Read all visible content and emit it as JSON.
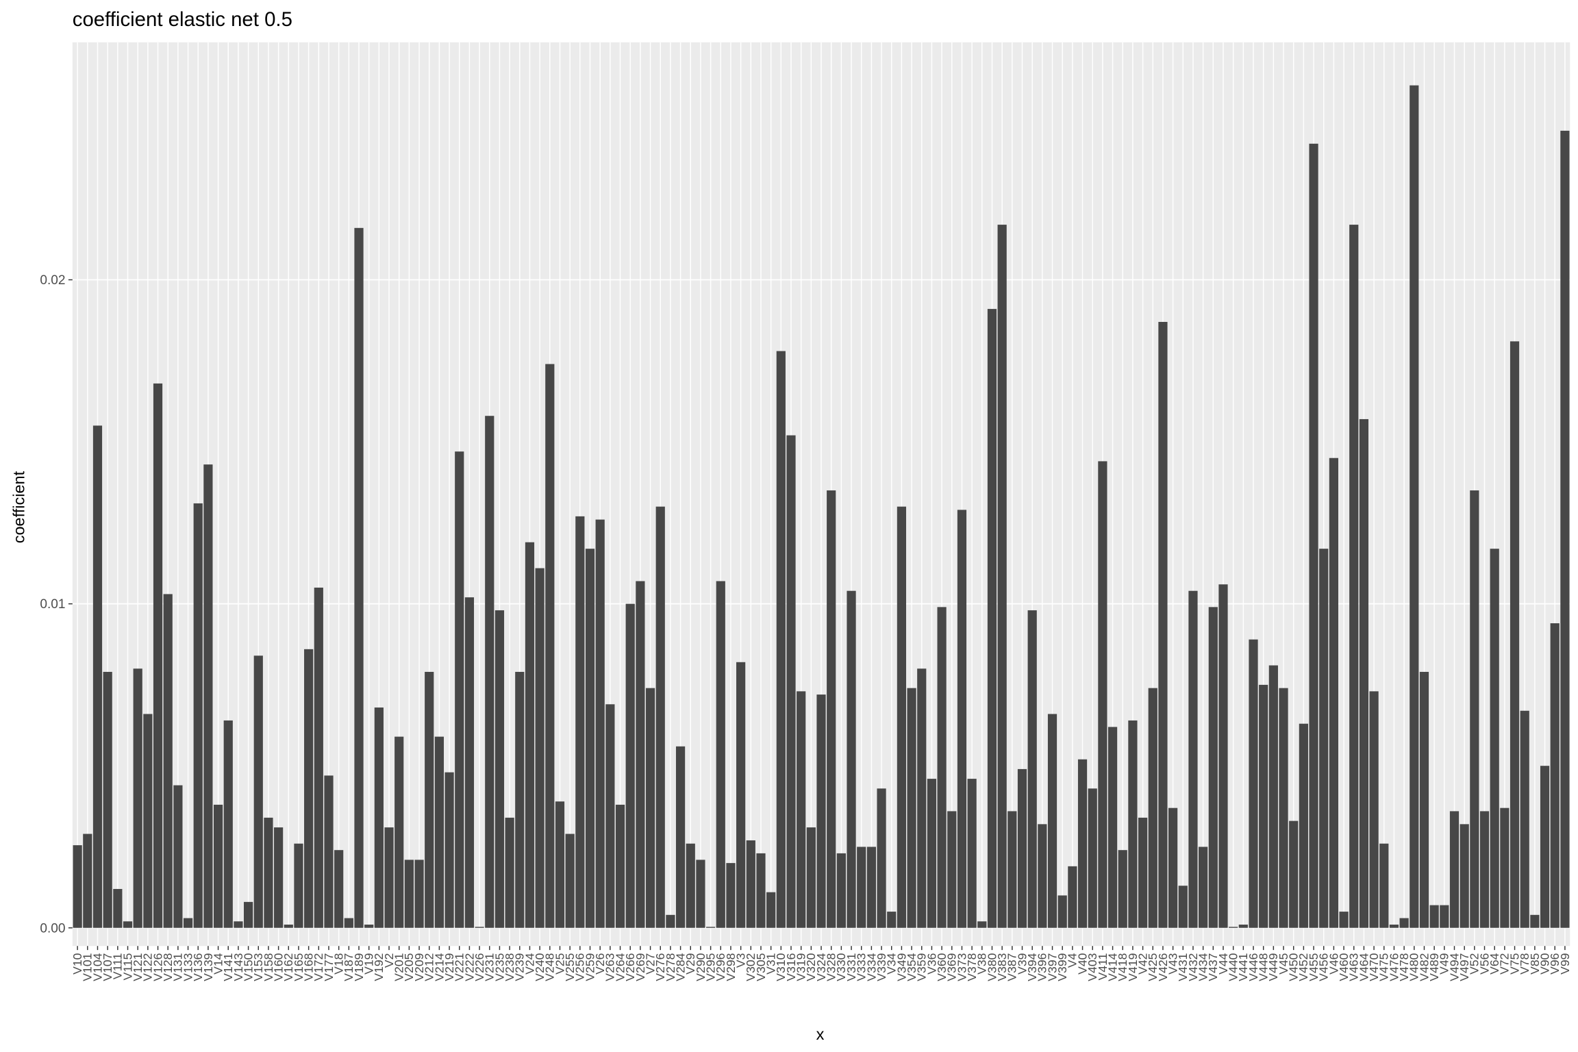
{
  "chart_data": {
    "type": "bar",
    "title": "coefficient elastic net 0.5",
    "xlabel": "x",
    "ylabel": "coefficient",
    "categories": [
      "V10",
      "V101",
      "V104",
      "V107",
      "V111",
      "V115",
      "V121",
      "V122",
      "V126",
      "V128",
      "V131",
      "V133",
      "V136",
      "V139",
      "V14",
      "V141",
      "V143",
      "V150",
      "V153",
      "V158",
      "V160",
      "V162",
      "V165",
      "V168",
      "V172",
      "V177",
      "V18",
      "V187",
      "V189",
      "V19",
      "V192",
      "V2",
      "V201",
      "V205",
      "V209",
      "V212",
      "V214",
      "V219",
      "V221",
      "V222",
      "V226",
      "V231",
      "V235",
      "V238",
      "V239",
      "V24",
      "V240",
      "V248",
      "V25",
      "V255",
      "V256",
      "V259",
      "V26",
      "V263",
      "V264",
      "V266",
      "V269",
      "V27",
      "V276",
      "V278",
      "V284",
      "V29",
      "V290",
      "V295",
      "V296",
      "V298",
      "V3",
      "V302",
      "V305",
      "V31",
      "V310",
      "V316",
      "V319",
      "V320",
      "V324",
      "V328",
      "V330",
      "V331",
      "V333",
      "V334",
      "V339",
      "V34",
      "V349",
      "V354",
      "V359",
      "V36",
      "V360",
      "V369",
      "V373",
      "V378",
      "V38",
      "V380",
      "V383",
      "V387",
      "V39",
      "V394",
      "V396",
      "V397",
      "V399",
      "V4",
      "V40",
      "V403",
      "V411",
      "V414",
      "V418",
      "V419",
      "V42",
      "V425",
      "V426",
      "V43",
      "V431",
      "V432",
      "V434",
      "V437",
      "V44",
      "V440",
      "V441",
      "V446",
      "V448",
      "V449",
      "V45",
      "V450",
      "V452",
      "V455",
      "V456",
      "V46",
      "V460",
      "V463",
      "V464",
      "V470",
      "V475",
      "V476",
      "V478",
      "V480",
      "V482",
      "V489",
      "V49",
      "V494",
      "V497",
      "V52",
      "V56",
      "V64",
      "V72",
      "V75",
      "V78",
      "V85",
      "V90",
      "V96",
      "V99"
    ],
    "values": [
      0.00255,
      0.0029,
      0.0155,
      0.0079,
      0.0012,
      0.0002,
      0.008,
      0.0066,
      0.0168,
      0.0103,
      0.0044,
      0.0003,
      0.0131,
      0.0143,
      0.0038,
      0.0064,
      0.0002,
      0.0008,
      0.0084,
      0.0034,
      0.0031,
      0.0001,
      0.0026,
      0.0086,
      0.0105,
      0.0047,
      0.0024,
      0.0003,
      0.0216,
      0.0001,
      0.0068,
      0.0031,
      0.0059,
      0.0021,
      0.0021,
      0.0079,
      0.0059,
      0.0048,
      0.0147,
      0.0102,
      3e-05,
      0.0158,
      0.0098,
      0.0034,
      0.0079,
      0.0119,
      0.0111,
      0.0174,
      0.0039,
      0.0029,
      0.0127,
      0.0117,
      0.0126,
      0.0069,
      0.0038,
      0.01,
      0.0107,
      0.0074,
      0.013,
      0.0004,
      0.0056,
      0.0026,
      0.0021,
      3e-05,
      0.0107,
      0.002,
      0.0082,
      0.0027,
      0.0023,
      0.0011,
      0.0178,
      0.0152,
      0.0073,
      0.0031,
      0.0072,
      0.0135,
      0.0023,
      0.0104,
      0.0025,
      0.0025,
      0.0043,
      0.0005,
      0.013,
      0.0074,
      0.008,
      0.0046,
      0.0099,
      0.0036,
      0.0129,
      0.0046,
      0.0002,
      0.0191,
      0.0217,
      0.0036,
      0.0049,
      0.0098,
      0.0032,
      0.0066,
      0.001,
      0.0019,
      0.0052,
      0.0043,
      0.0144,
      0.0062,
      0.0024,
      0.0064,
      0.0034,
      0.0074,
      0.0187,
      0.0037,
      0.0013,
      0.0104,
      0.0025,
      0.0099,
      0.0106,
      3e-05,
      0.0001,
      0.0089,
      0.0075,
      0.0081,
      0.0074,
      0.0033,
      0.0063,
      0.0242,
      0.0117,
      0.0145,
      0.0005,
      0.0217,
      0.0157,
      0.0073,
      0.0026,
      0.0001,
      0.0003,
      0.026,
      0.0079,
      0.0007,
      0.0007,
      0.0036,
      0.0032,
      0.0135,
      0.0036,
      0.0117,
      0.0037,
      0.0181,
      0.0067,
      0.0004,
      0.005,
      0.0094,
      0.0246
    ],
    "color": "#474747",
    "ylim": [
      -0.00056,
      0.02733
    ],
    "yticks": [
      {
        "value": 0,
        "label": "0.00"
      },
      0.01,
      0.02
    ],
    "grid": true
  }
}
